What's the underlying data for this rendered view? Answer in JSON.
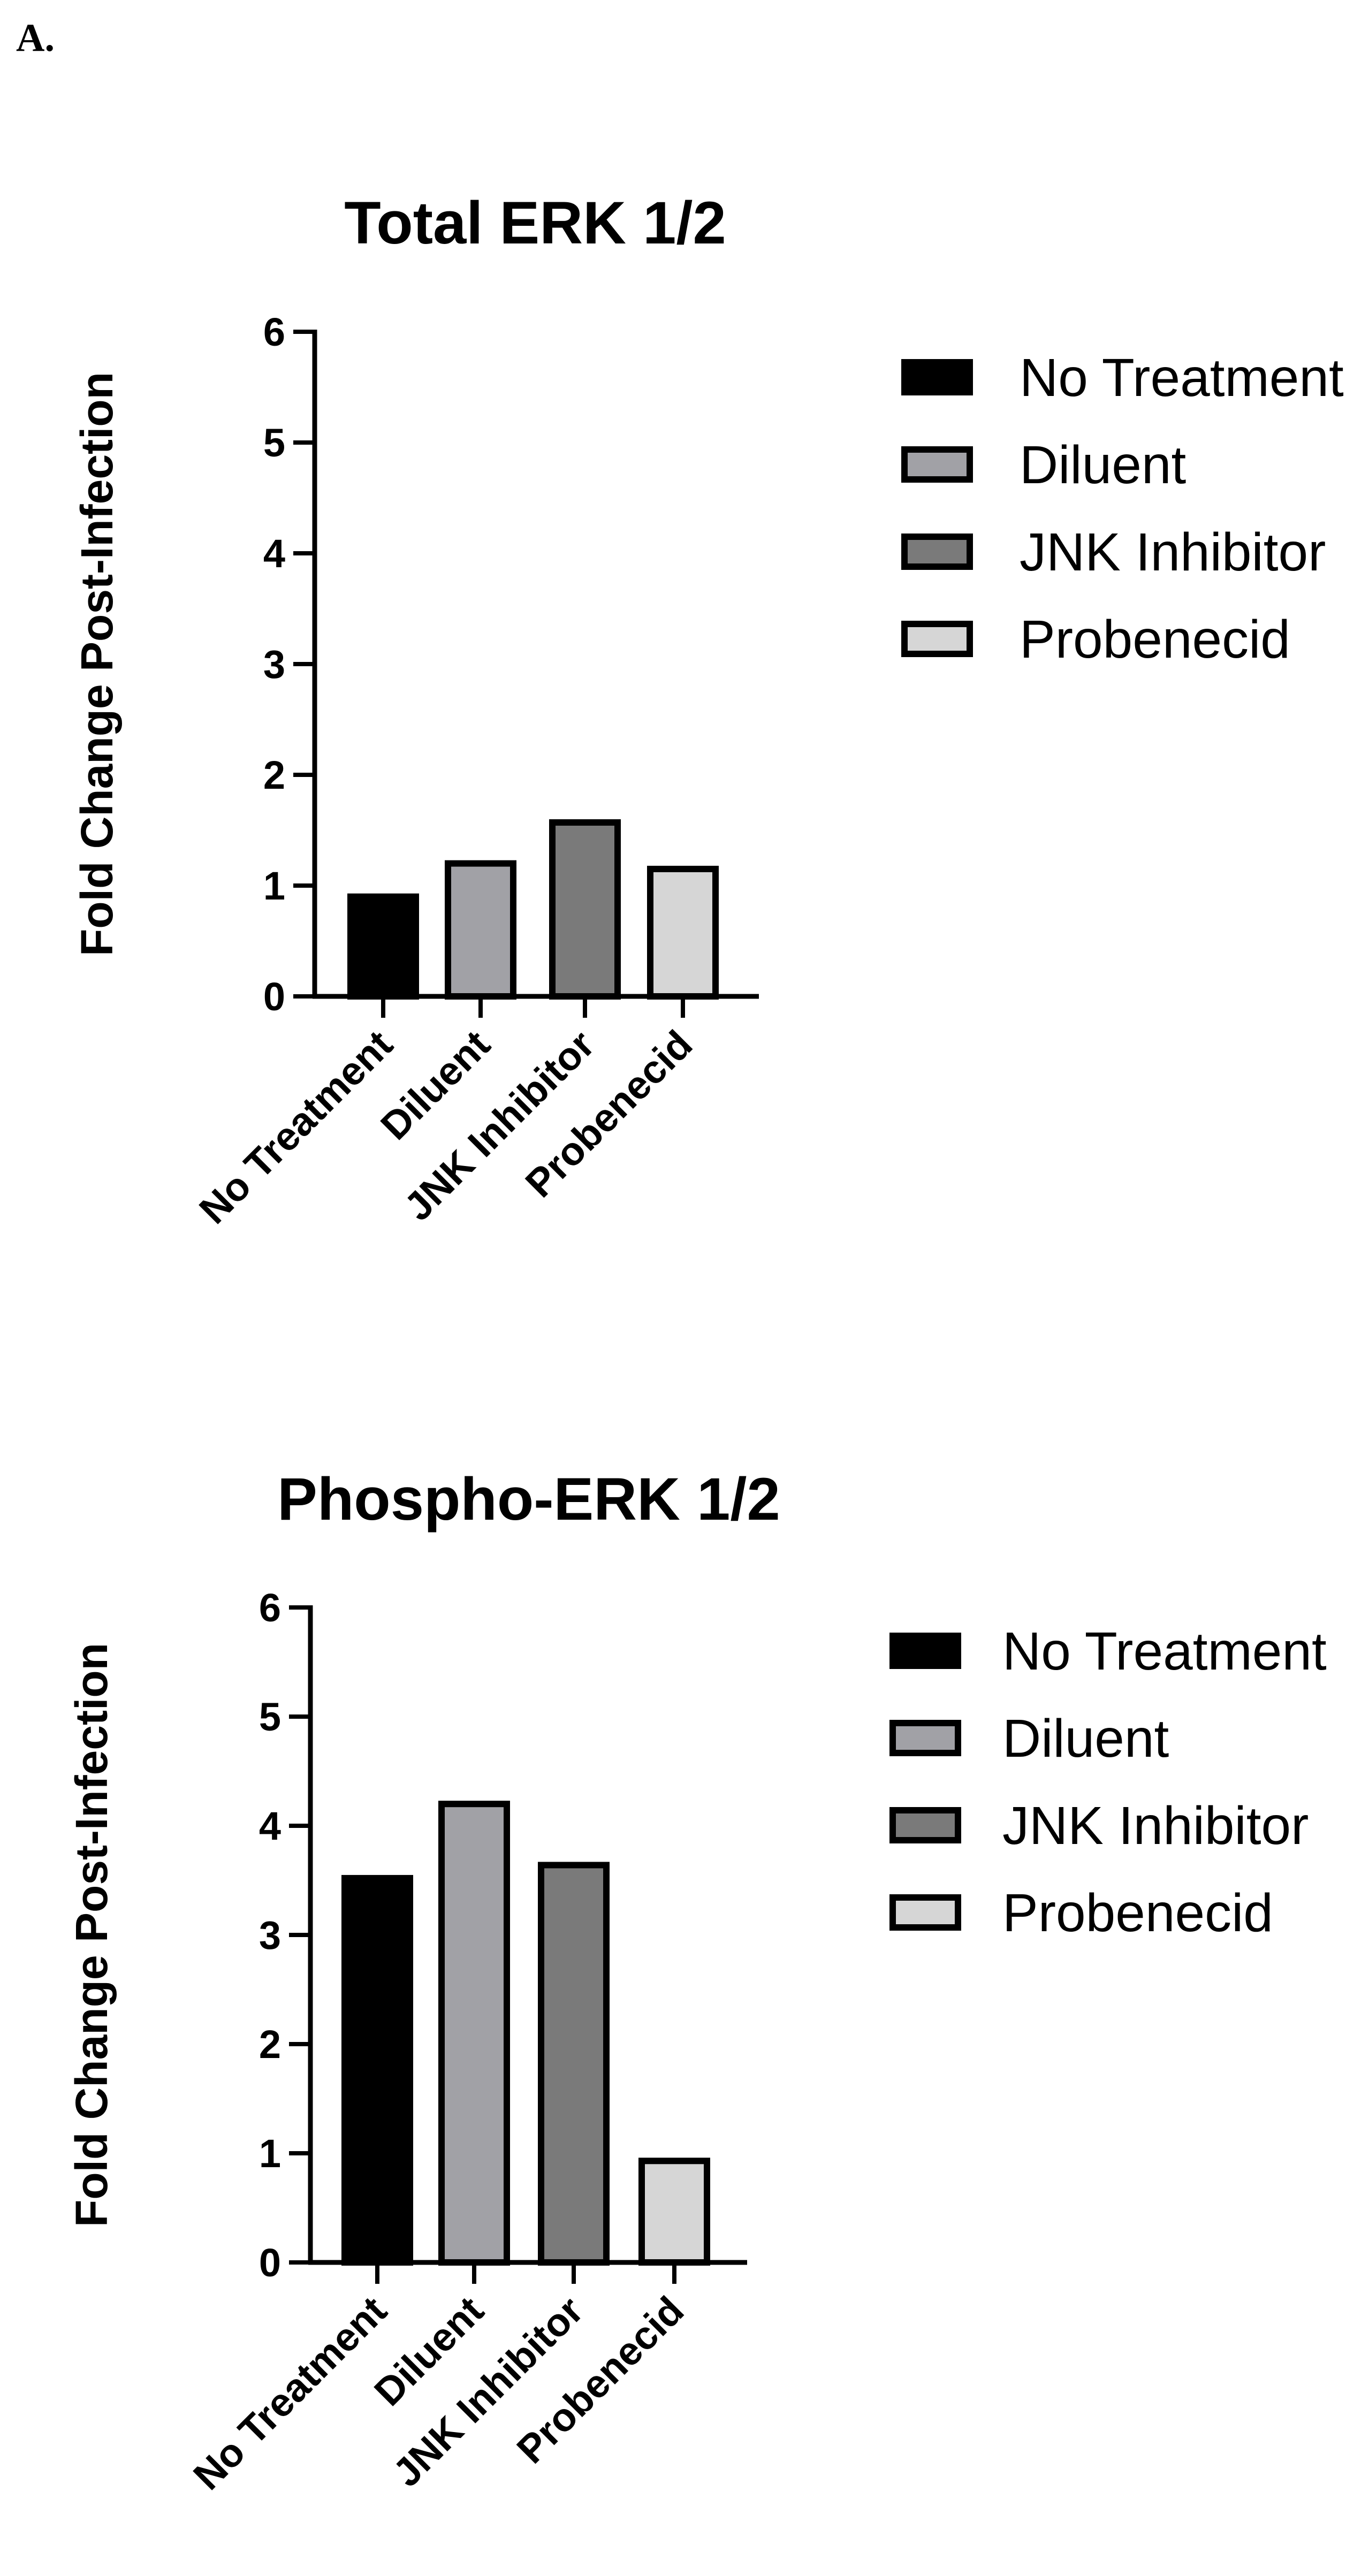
{
  "panel_label": "A.",
  "colors": {
    "no_treatment": "#000000",
    "diluent": "#a1a1a6",
    "jnk_inhibitor": "#7a7a7a",
    "probenecid": "#d6d6d6",
    "outline": "#000000"
  },
  "chart_data": [
    {
      "type": "bar",
      "title": "Total ERK 1/2",
      "ylabel": "Fold Change Post-Infection",
      "xlabel": "",
      "categories": [
        "No Treatment",
        "Diluent",
        "JNK Inhibitor",
        "Probenecid"
      ],
      "values": [
        0.9,
        1.2,
        1.57,
        1.15
      ],
      "ylim": [
        0,
        6
      ],
      "yticks": [
        "0",
        "1",
        "2",
        "3",
        "4",
        "5",
        "6"
      ],
      "grid": false,
      "legend_position": "right",
      "legend": [
        "No Treatment",
        "Diluent",
        "JNK Inhibitor",
        "Probenecid"
      ]
    },
    {
      "type": "bar",
      "title": "Phospho-ERK 1/2",
      "ylabel": "Fold Change Post-Infection",
      "xlabel": "",
      "categories": [
        "No Treatment",
        "Diluent",
        "JNK Inhibitor",
        "Probenecid"
      ],
      "values": [
        3.52,
        4.2,
        3.64,
        0.93
      ],
      "ylim": [
        0,
        6
      ],
      "yticks": [
        "0",
        "1",
        "2",
        "3",
        "4",
        "5",
        "6"
      ],
      "grid": false,
      "legend_position": "right",
      "legend": [
        "No Treatment",
        "Diluent",
        "JNK Inhibitor",
        "Probenecid"
      ]
    }
  ]
}
